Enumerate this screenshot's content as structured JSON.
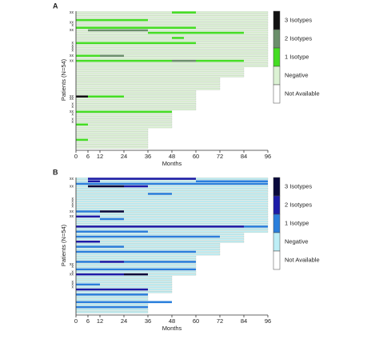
{
  "chart_data": [
    {
      "type": "swimmer",
      "panel_label": "A",
      "x_label": "Months",
      "y_label": "Patients (N=54)",
      "xlim": [
        0,
        96
      ],
      "xticks": [
        0,
        6,
        12,
        24,
        36,
        48,
        60,
        72,
        84,
        96
      ],
      "row_labels": [
        "xx",
        null,
        null,
        null,
        "xx",
        "x",
        null,
        "xx",
        null,
        null,
        null,
        null,
        "x",
        "x",
        "x",
        "x",
        null,
        "xx",
        null,
        "xx",
        null,
        null,
        null,
        null,
        null,
        null,
        null,
        null,
        null,
        null,
        null,
        null,
        null,
        "xx",
        "xx",
        null,
        "x",
        "x",
        null,
        "xx",
        "x",
        null,
        "x",
        "x",
        null,
        null,
        null,
        null,
        null,
        null,
        null,
        null,
        null,
        null
      ],
      "series": [
        {
          "name": "3 Isotypes",
          "color": "#111111",
          "segments": [
            {
              "row": 33,
              "start": 0,
              "end": 6
            }
          ]
        },
        {
          "name": "2 Isotypes",
          "color": "#6b8f6b",
          "segments": [
            {
              "row": 7,
              "start": 6,
              "end": 36
            },
            {
              "row": 17,
              "start": 12,
              "end": 24
            },
            {
              "row": 19,
              "start": 48,
              "end": 60
            }
          ]
        },
        {
          "name": "1 Isotype",
          "color": "#44dd22",
          "segments": [
            {
              "row": 0,
              "start": 48,
              "end": 60
            },
            {
              "row": 3,
              "start": 0,
              "end": 36
            },
            {
              "row": 6,
              "start": 0,
              "end": 60
            },
            {
              "row": 8,
              "start": 36,
              "end": 84
            },
            {
              "row": 10,
              "start": 48,
              "end": 54
            },
            {
              "row": 12,
              "start": 0,
              "end": 60
            },
            {
              "row": 17,
              "start": 0,
              "end": 12
            },
            {
              "row": 19,
              "start": 0,
              "end": 48
            },
            {
              "row": 19,
              "start": 60,
              "end": 84
            },
            {
              "row": 33,
              "start": 6,
              "end": 12
            },
            {
              "row": 33,
              "start": 12,
              "end": 24
            },
            {
              "row": 39,
              "start": 0,
              "end": 48
            },
            {
              "row": 44,
              "start": 0,
              "end": 6
            },
            {
              "row": 50,
              "start": 0,
              "end": 6
            }
          ]
        },
        {
          "name": "Negative",
          "color": "#dcf2d4",
          "values": [
            96,
            96,
            96,
            96,
            96,
            96,
            96,
            96,
            96,
            96,
            96,
            96,
            96,
            96,
            96,
            96,
            96,
            96,
            96,
            96,
            96,
            96,
            84,
            84,
            84,
            84,
            72,
            72,
            72,
            72,
            72,
            60,
            60,
            60,
            60,
            60,
            60,
            60,
            60,
            48,
            48,
            48,
            48,
            48,
            48,
            48,
            36,
            36,
            36,
            36,
            36,
            36,
            36,
            36
          ]
        },
        {
          "name": "Not Available",
          "color": "#ffffff"
        }
      ]
    },
    {
      "type": "swimmer",
      "panel_label": "B",
      "x_label": "Months",
      "y_label": "Patients (N=54)",
      "xlim": [
        0,
        96
      ],
      "xticks": [
        0,
        6,
        12,
        24,
        36,
        48,
        60,
        72,
        84,
        96
      ],
      "row_labels": [
        "xx",
        null,
        null,
        "xx",
        null,
        null,
        null,
        null,
        "x",
        "x",
        "x",
        "x",
        null,
        "xx",
        null,
        "xx",
        null,
        null,
        null,
        null,
        null,
        null,
        null,
        null,
        null,
        null,
        null,
        null,
        null,
        null,
        null,
        null,
        null,
        null,
        "xx",
        "x",
        null,
        "x",
        "xx",
        null,
        null,
        "x",
        "x",
        "x",
        null,
        null,
        null,
        null,
        null,
        null,
        null,
        null,
        null,
        null
      ],
      "series": [
        {
          "name": "3 Isotypes",
          "color": "#0a0a3c",
          "segments": [
            {
              "row": 3,
              "start": 6,
              "end": 24
            },
            {
              "row": 13,
              "start": 12,
              "end": 24
            },
            {
              "row": 38,
              "start": 24,
              "end": 36
            }
          ]
        },
        {
          "name": "2 Isotypes",
          "color": "#1c1ca8",
          "segments": [
            {
              "row": 0,
              "start": 6,
              "end": 60
            },
            {
              "row": 1,
              "start": 6,
              "end": 12
            },
            {
              "row": 3,
              "start": 24,
              "end": 36
            },
            {
              "row": 15,
              "start": 0,
              "end": 12
            },
            {
              "row": 19,
              "start": 0,
              "end": 84
            },
            {
              "row": 25,
              "start": 0,
              "end": 12
            },
            {
              "row": 33,
              "start": 12,
              "end": 24
            },
            {
              "row": 38,
              "start": 0,
              "end": 24
            },
            {
              "row": 44,
              "start": 0,
              "end": 36
            }
          ]
        },
        {
          "name": "1 Isotype",
          "color": "#2a7fdc",
          "segments": [
            {
              "row": 1,
              "start": 60,
              "end": 96
            },
            {
              "row": 2,
              "start": 0,
              "end": 96
            },
            {
              "row": 6,
              "start": 36,
              "end": 48
            },
            {
              "row": 13,
              "start": 0,
              "end": 12
            },
            {
              "row": 16,
              "start": 12,
              "end": 24
            },
            {
              "row": 19,
              "start": 84,
              "end": 96
            },
            {
              "row": 21,
              "start": 0,
              "end": 36
            },
            {
              "row": 23,
              "start": 0,
              "end": 72
            },
            {
              "row": 27,
              "start": 0,
              "end": 24
            },
            {
              "row": 29,
              "start": 0,
              "end": 60
            },
            {
              "row": 33,
              "start": 0,
              "end": 12
            },
            {
              "row": 33,
              "start": 24,
              "end": 60
            },
            {
              "row": 36,
              "start": 0,
              "end": 60
            },
            {
              "row": 42,
              "start": 0,
              "end": 12
            },
            {
              "row": 46,
              "start": 0,
              "end": 36
            },
            {
              "row": 49,
              "start": 0,
              "end": 48
            },
            {
              "row": 51,
              "start": 0,
              "end": 36
            }
          ]
        },
        {
          "name": "Negative",
          "color": "#bdeef6",
          "values": [
            96,
            96,
            96,
            96,
            96,
            96,
            96,
            96,
            96,
            96,
            96,
            96,
            96,
            96,
            96,
            96,
            96,
            96,
            96,
            96,
            96,
            96,
            84,
            84,
            84,
            84,
            72,
            72,
            72,
            72,
            72,
            60,
            60,
            60,
            60,
            60,
            60,
            60,
            60,
            48,
            48,
            48,
            48,
            48,
            48,
            48,
            36,
            36,
            36,
            36,
            36,
            36,
            36,
            36
          ]
        },
        {
          "name": "Not Available",
          "color": "#ffffff"
        }
      ]
    }
  ]
}
